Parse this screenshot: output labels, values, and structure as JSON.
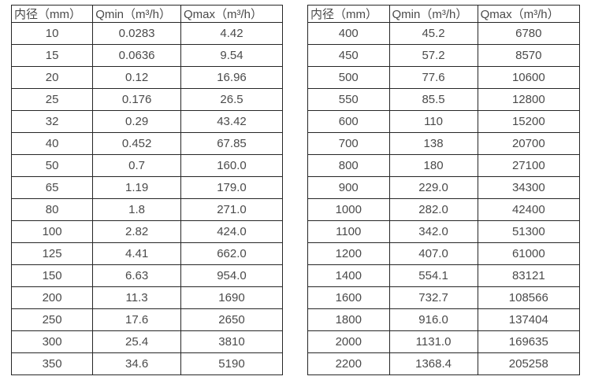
{
  "page": {
    "background_color": "#ffffff",
    "border_color": "#262626",
    "text_color": "#4a4a4a"
  },
  "tables": [
    {
      "name": "flow-table-small-diameters",
      "headers": [
        "内径（mm）",
        "Qmin（m³/h）",
        "Qmax（m³/h）"
      ],
      "rows": [
        [
          "10",
          "0.0283",
          "4.42"
        ],
        [
          "15",
          "0.0636",
          "9.54"
        ],
        [
          "20",
          "0.12",
          "16.96"
        ],
        [
          "25",
          "0.176",
          "26.5"
        ],
        [
          "32",
          "0.29",
          "43.42"
        ],
        [
          "40",
          "0.452",
          "67.85"
        ],
        [
          "50",
          "0.7",
          "160.0"
        ],
        [
          "65",
          "1.19",
          "179.0"
        ],
        [
          "80",
          "1.8",
          "271.0"
        ],
        [
          "100",
          "2.82",
          "424.0"
        ],
        [
          "125",
          "4.41",
          "662.0"
        ],
        [
          "150",
          "6.63",
          "954.0"
        ],
        [
          "200",
          "11.3",
          "1690"
        ],
        [
          "250",
          "17.6",
          "2650"
        ],
        [
          "300",
          "25.4",
          "3810"
        ],
        [
          "350",
          "34.6",
          "5190"
        ]
      ]
    },
    {
      "name": "flow-table-large-diameters",
      "headers": [
        "内径（mm）",
        "Qmin（m³/h）",
        "Qmax（m³/h）"
      ],
      "rows": [
        [
          "400",
          "45.2",
          "6780"
        ],
        [
          "450",
          "57.2",
          "8570"
        ],
        [
          "500",
          "77.6",
          "10600"
        ],
        [
          "550",
          "85.5",
          "12800"
        ],
        [
          "600",
          "110",
          "15200"
        ],
        [
          "700",
          "138",
          "20700"
        ],
        [
          "800",
          "180",
          "27100"
        ],
        [
          "900",
          "229.0",
          "34300"
        ],
        [
          "1000",
          "282.0",
          "42400"
        ],
        [
          "1100",
          "342.0",
          "51300"
        ],
        [
          "1200",
          "407.0",
          "61000"
        ],
        [
          "1400",
          "554.1",
          "83121"
        ],
        [
          "1600",
          "732.7",
          "108566"
        ],
        [
          "1800",
          "916.0",
          "137404"
        ],
        [
          "2000",
          "1131.0",
          "169635"
        ],
        [
          "2200",
          "1368.4",
          "205258"
        ]
      ]
    }
  ]
}
